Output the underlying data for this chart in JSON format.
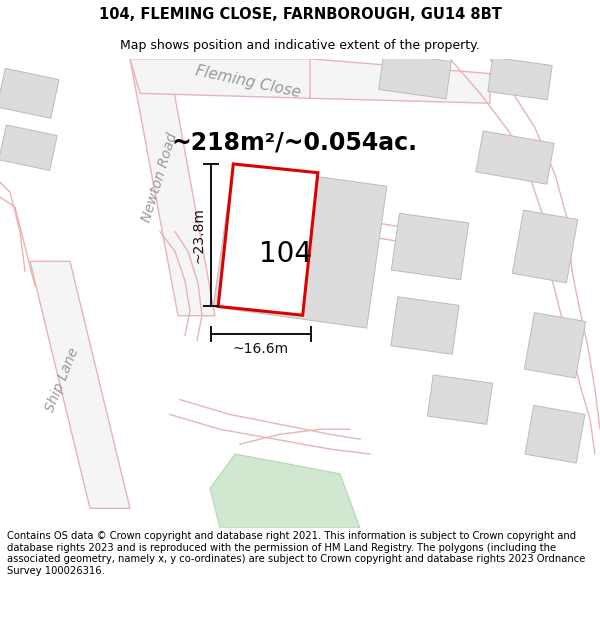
{
  "title": "104, FLEMING CLOSE, FARNBOROUGH, GU14 8BT",
  "subtitle": "Map shows position and indicative extent of the property.",
  "area_text": "~218m²/~0.054ac.",
  "label_104": "104",
  "dim_height": "~23.8m",
  "dim_width": "~16.6m",
  "footer_text": "Contains OS data © Crown copyright and database right 2021. This information is subject to Crown copyright and database rights 2023 and is reproduced with the permission of HM Land Registry. The polygons (including the associated geometry, namely x, y co-ordinates) are subject to Crown copyright and database rights 2023 Ordnance Survey 100026316.",
  "map_bg": "#f2f0f0",
  "road_fill": "#f5f5f5",
  "road_line": "#e8b4b4",
  "building_fill": "#dcdcdc",
  "building_edge": "#bbbbbb",
  "highlight_color": "#dd0000",
  "dim_color": "#111111",
  "street_label_color": "#999999",
  "green_fill": "#d0e8d0",
  "title_fontsize": 10.5,
  "subtitle_fontsize": 9,
  "area_fontsize": 17,
  "label_fontsize": 20,
  "dim_fontsize": 10,
  "street_fontsize": 10,
  "footer_fontsize": 7.2
}
